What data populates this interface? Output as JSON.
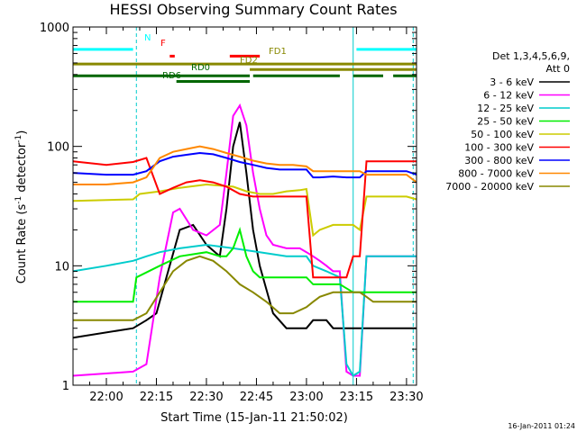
{
  "chart_data": {
    "type": "line",
    "title": "HESSI Observing Summary Count Rates",
    "xlabel": "Start Time (15-Jan-11 21:50:02)",
    "ylabel_main": "Count Rate (s",
    "ylabel_sup1": "-1",
    "ylabel_mid": " detector",
    "ylabel_sup2": "-1",
    "ylabel_end": ")",
    "y_scale": "log",
    "ylim": [
      1,
      1000
    ],
    "xlim_minutes": [
      0,
      103
    ],
    "x_ticks": [
      {
        "m": 10,
        "label": "22:00"
      },
      {
        "m": 25,
        "label": "22:15"
      },
      {
        "m": 40,
        "label": "22:30"
      },
      {
        "m": 55,
        "label": "22:45"
      },
      {
        "m": 70,
        "label": "23:00"
      },
      {
        "m": 85,
        "label": "23:15"
      },
      {
        "m": 100,
        "label": "23:30"
      }
    ],
    "y_ticks": [
      {
        "v": 1,
        "label": "1"
      },
      {
        "v": 10,
        "label": "10"
      },
      {
        "v": 100,
        "label": "100"
      },
      {
        "v": 1000,
        "label": "1000"
      }
    ],
    "legend_header": [
      "Det 1,3,4,5,6,9,",
      "Att 0"
    ],
    "legend_position": "right",
    "series": [
      {
        "name": "3 - 6 keV",
        "color": "#000000",
        "x": [
          0,
          18,
          22,
          25,
          28,
          32,
          36,
          40,
          44,
          46,
          48,
          50,
          52,
          54,
          56,
          60,
          64,
          68,
          70,
          72,
          74,
          76,
          78,
          80,
          82,
          84,
          86,
          90,
          95,
          100,
          103
        ],
        "y": [
          2.5,
          3,
          3.5,
          4,
          8,
          20,
          22,
          15,
          12,
          30,
          100,
          160,
          60,
          20,
          10,
          4,
          3,
          3,
          3,
          3.5,
          3.5,
          3.5,
          3,
          3,
          3,
          3,
          3,
          3,
          3,
          3,
          3
        ]
      },
      {
        "name": "6 - 12 keV",
        "color": "#ff00ff",
        "x": [
          0,
          18,
          22,
          26,
          28,
          30,
          32,
          36,
          40,
          44,
          46,
          48,
          50,
          52,
          54,
          56,
          58,
          60,
          64,
          68,
          70,
          72,
          74,
          76,
          78,
          80,
          82,
          84,
          86,
          88,
          90,
          95,
          100,
          103
        ],
        "y": [
          1.2,
          1.3,
          1.5,
          8,
          15,
          28,
          30,
          20,
          18,
          22,
          60,
          180,
          220,
          150,
          60,
          30,
          18,
          15,
          14,
          14,
          13,
          12,
          11,
          10,
          9,
          9,
          1.3,
          1.2,
          1.2,
          12,
          12,
          12,
          12,
          12
        ]
      },
      {
        "name": "12 - 25 keV",
        "color": "#00cccc",
        "x": [
          0,
          10,
          18,
          22,
          26,
          32,
          40,
          48,
          56,
          64,
          70,
          72,
          76,
          80,
          82,
          84,
          86,
          88,
          90,
          95,
          100,
          103
        ],
        "y": [
          9,
          10,
          11,
          12,
          13,
          14,
          15,
          14,
          13,
          12,
          12,
          10,
          9,
          8,
          1.5,
          1.2,
          1.3,
          12,
          12,
          12,
          12,
          12
        ]
      },
      {
        "name": "25 - 50 keV",
        "color": "#00ee00",
        "x": [
          0,
          18,
          19,
          26,
          32,
          40,
          44,
          46,
          48,
          50,
          52,
          54,
          56,
          60,
          64,
          68,
          70,
          72,
          76,
          80,
          84,
          86,
          88,
          90,
          95,
          100,
          103
        ],
        "y": [
          5,
          5,
          8,
          10,
          12,
          13,
          12,
          12,
          14,
          20,
          12,
          9,
          8,
          8,
          8,
          8,
          8,
          7,
          7,
          7,
          6,
          6,
          6,
          6,
          6,
          6,
          6
        ]
      },
      {
        "name": "50 - 100 keV",
        "color": "#cccc00",
        "x": [
          0,
          18,
          20,
          26,
          32,
          40,
          48,
          50,
          52,
          56,
          60,
          64,
          68,
          70,
          72,
          74,
          78,
          82,
          84,
          86,
          88,
          90,
          95,
          100,
          103
        ],
        "y": [
          35,
          36,
          40,
          42,
          45,
          48,
          46,
          44,
          42,
          40,
          40,
          42,
          43,
          44,
          18,
          20,
          22,
          22,
          22,
          20,
          38,
          38,
          38,
          38,
          36
        ]
      },
      {
        "name": "100 - 300 keV",
        "color": "#ff0000",
        "x": [
          0,
          10,
          18,
          22,
          26,
          30,
          34,
          38,
          42,
          46,
          50,
          54,
          58,
          62,
          66,
          70,
          72,
          74,
          78,
          82,
          84,
          86,
          88,
          90,
          95,
          100,
          103
        ],
        "y": [
          75,
          70,
          74,
          80,
          40,
          45,
          50,
          52,
          50,
          46,
          40,
          38,
          38,
          38,
          38,
          38,
          8,
          8,
          8,
          8,
          12,
          12,
          75,
          75,
          75,
          75,
          75
        ]
      },
      {
        "name": "300 - 800 keV",
        "color": "#0000ff",
        "x": [
          0,
          10,
          18,
          22,
          26,
          30,
          34,
          38,
          42,
          46,
          50,
          54,
          58,
          62,
          66,
          70,
          72,
          74,
          78,
          82,
          86,
          88,
          90,
          95,
          100,
          103
        ],
        "y": [
          60,
          58,
          58,
          62,
          75,
          82,
          85,
          88,
          86,
          80,
          74,
          70,
          66,
          64,
          64,
          64,
          55,
          55,
          56,
          55,
          55,
          62,
          62,
          62,
          62,
          58
        ]
      },
      {
        "name": "800 - 7000 keV",
        "color": "#ff8800",
        "x": [
          0,
          10,
          18,
          22,
          26,
          30,
          34,
          38,
          42,
          46,
          50,
          54,
          58,
          62,
          66,
          70,
          72,
          74,
          78,
          82,
          86,
          88,
          90,
          95,
          100,
          103
        ],
        "y": [
          48,
          48,
          50,
          55,
          80,
          90,
          95,
          100,
          95,
          88,
          82,
          76,
          72,
          70,
          70,
          68,
          62,
          62,
          62,
          62,
          62,
          58,
          58,
          58,
          58,
          50
        ]
      },
      {
        "name": "7000 - 20000 keV",
        "color": "#888800",
        "x": [
          0,
          10,
          18,
          22,
          26,
          30,
          34,
          38,
          42,
          46,
          50,
          54,
          58,
          62,
          66,
          70,
          72,
          74,
          78,
          82,
          86,
          88,
          90,
          95,
          100,
          103
        ],
        "y": [
          3.5,
          3.5,
          3.5,
          4,
          6,
          9,
          11,
          12,
          11,
          9,
          7,
          6,
          5,
          4,
          4,
          4.5,
          5,
          5.5,
          6,
          6,
          6,
          5.5,
          5,
          5,
          5,
          5
        ]
      }
    ],
    "flag_bars": [
      {
        "label": "N",
        "color": "#00ffff",
        "row_value": 650,
        "segments": [
          [
            0,
            18
          ],
          [
            85,
            103
          ]
        ]
      },
      {
        "label": "F",
        "color": "#ff0000",
        "row_value": 570,
        "segments": [
          [
            29,
            30.5
          ],
          [
            47,
            56
          ]
        ]
      },
      {
        "label": "FD1",
        "color": "#888800",
        "row_value": 490,
        "segments": [
          [
            0,
            103
          ]
        ]
      },
      {
        "label": "FD2",
        "color": "#888800",
        "row_value": 440,
        "segments": [
          [
            53,
            103
          ]
        ]
      },
      {
        "label": "RD0",
        "color": "#006600",
        "row_value": 390,
        "segments": [
          [
            0,
            53
          ],
          [
            54,
            80
          ],
          [
            84,
            93
          ],
          [
            96,
            103
          ]
        ]
      },
      {
        "label": "RD6",
        "color": "#006600",
        "row_value": 350,
        "segments": [
          [
            31,
            53
          ]
        ]
      }
    ],
    "vertical_markers": [
      {
        "m": 19,
        "color": "#00cccc",
        "style": "dashed"
      },
      {
        "m": 84,
        "color": "#00cccc",
        "style": "solid"
      },
      {
        "m": 102,
        "color": "#00cccc",
        "style": "dashed"
      }
    ]
  },
  "timestamp": "16-Jan-2011 01:24"
}
